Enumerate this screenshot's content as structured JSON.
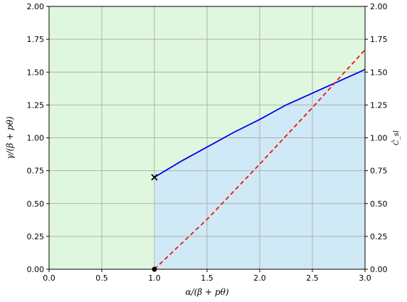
{
  "chart_data": {
    "type": "line",
    "xlabel": "α/(β + pθ)",
    "ylabel": "γ/(β + pθ)",
    "ylabel_right": "Ĉ_sl",
    "xlim": [
      0.0,
      3.0
    ],
    "ylim": [
      0.0,
      2.0
    ],
    "ylim_right": [
      0.0,
      2.0
    ],
    "grid": true,
    "x_ticks": [
      "0.0",
      "0.5",
      "1.0",
      "1.5",
      "2.0",
      "2.5",
      "3.0"
    ],
    "y_ticks": [
      "0.00",
      "0.25",
      "0.50",
      "0.75",
      "1.00",
      "1.25",
      "1.50",
      "1.75",
      "2.00"
    ],
    "y_ticks_right": [
      "0.00",
      "0.25",
      "0.50",
      "0.75",
      "1.00",
      "1.25",
      "1.50",
      "1.75",
      "2.00"
    ],
    "regions": [
      {
        "x_range": [
          0.0,
          1.0
        ],
        "color": "#dff7de"
      },
      {
        "x_range": [
          1.0,
          3.0
        ],
        "below_series": 0,
        "color": "#d0e9f6",
        "above_color": "#dff7de"
      }
    ],
    "series": [
      {
        "style": "solid",
        "color": "#0000ee",
        "axis": "left",
        "x": [
          1.0,
          1.25,
          1.5,
          1.75,
          2.0,
          2.25,
          2.5,
          2.75,
          3.0
        ],
        "y": [
          0.7,
          0.82,
          0.93,
          1.04,
          1.14,
          1.25,
          1.34,
          1.43,
          1.52
        ]
      },
      {
        "style": "dashed",
        "color": "#ee1111",
        "axis": "right",
        "x": [
          1.0,
          1.5,
          2.0,
          2.5,
          3.0
        ],
        "y": [
          0.0,
          0.38,
          0.8,
          1.23,
          1.67
        ]
      }
    ],
    "markers": [
      {
        "x": 1.0,
        "y": 0.7,
        "symbol": "x",
        "color": "#000000"
      },
      {
        "x": 1.0,
        "y": 0.0,
        "symbol": "dot",
        "color": "#000000"
      }
    ]
  }
}
